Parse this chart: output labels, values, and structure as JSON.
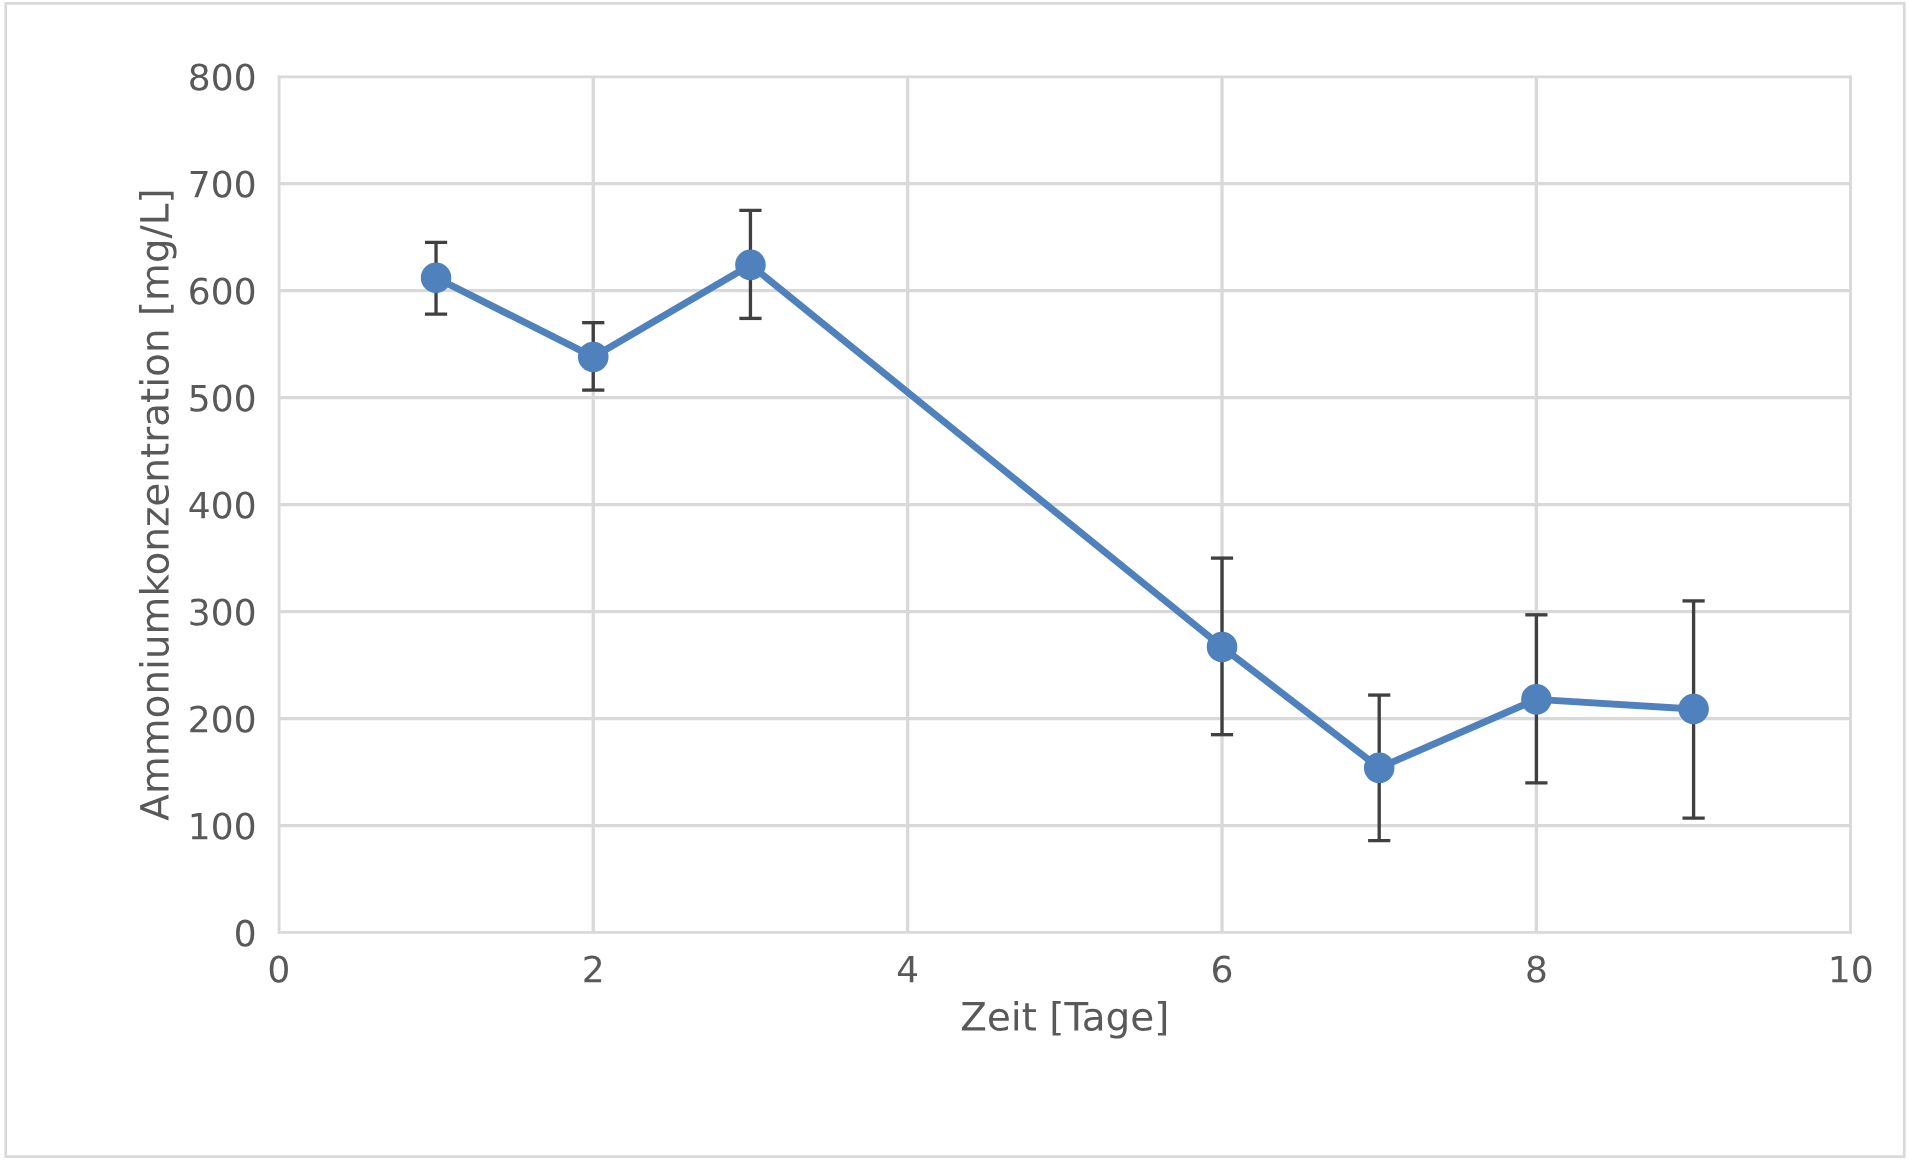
{
  "chart_data": {
    "type": "line",
    "xlabel": "Zeit [Tage]",
    "ylabel": "Ammoniumkonzentration [mg/L]",
    "x": [
      1,
      2,
      3,
      6,
      7,
      8,
      9
    ],
    "series": [
      {
        "color": "#4f81bd",
        "values": [
          612,
          538,
          624,
          267,
          154,
          218,
          209
        ],
        "errors": [
          [
            578,
            645
          ],
          [
            507,
            570
          ],
          [
            574,
            675
          ],
          [
            185,
            350
          ],
          [
            86,
            222
          ],
          [
            140,
            297
          ],
          [
            107,
            310
          ]
        ]
      }
    ],
    "xlim": [
      0,
      10
    ],
    "xticks": [
      0,
      2,
      4,
      6,
      8,
      10
    ],
    "ylim": [
      0,
      800
    ],
    "yticks": [
      0,
      100,
      200,
      300,
      400,
      500,
      600,
      700,
      800
    ],
    "grid": true,
    "marker": "circle",
    "line_style": "solid"
  }
}
